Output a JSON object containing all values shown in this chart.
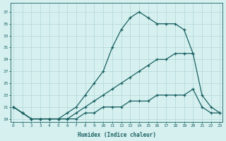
{
  "xlabel": "Humidex (Indice chaleur)",
  "ylabel_ticks": [
    19,
    21,
    23,
    25,
    27,
    29,
    31,
    33,
    35,
    37
  ],
  "xlim": [
    -0.3,
    23.3
  ],
  "ylim": [
    18.5,
    38.5
  ],
  "xticks": [
    0,
    1,
    2,
    3,
    4,
    5,
    6,
    7,
    8,
    9,
    10,
    11,
    12,
    13,
    14,
    15,
    16,
    17,
    18,
    19,
    20,
    21,
    22,
    23
  ],
  "background_color": "#d6f0f0",
  "grid_color": "#b8dada",
  "line_color": "#1a6060",
  "lines": [
    {
      "x": [
        0,
        1,
        2,
        3,
        4,
        5,
        6,
        7,
        8,
        9,
        10,
        11,
        12,
        13,
        14,
        15,
        16,
        17,
        18,
        19,
        20
      ],
      "y": [
        21,
        20,
        19,
        19,
        19,
        19,
        20,
        21,
        23,
        25,
        27,
        31,
        34,
        36,
        37,
        36,
        35,
        35,
        35,
        34,
        30
      ]
    },
    {
      "x": [
        0,
        1,
        2,
        3,
        4,
        5,
        6,
        7,
        8,
        9,
        10,
        11,
        12,
        13,
        14,
        15,
        16,
        17,
        18,
        19,
        20,
        21,
        22,
        23
      ],
      "y": [
        21,
        20,
        19,
        19,
        19,
        19,
        19,
        20,
        21,
        22,
        23,
        24,
        25,
        26,
        27,
        28,
        29,
        29,
        30,
        30,
        30,
        23,
        21,
        20
      ]
    },
    {
      "x": [
        0,
        1,
        2,
        3,
        4,
        5,
        6,
        7,
        8,
        9,
        10,
        11,
        12,
        13,
        14,
        15,
        16,
        17,
        18,
        19,
        20,
        21,
        22,
        23
      ],
      "y": [
        21,
        20,
        19,
        19,
        19,
        19,
        19,
        19,
        20,
        20,
        21,
        21,
        21,
        22,
        22,
        22,
        23,
        23,
        23,
        23,
        24,
        21,
        20,
        20
      ]
    }
  ]
}
